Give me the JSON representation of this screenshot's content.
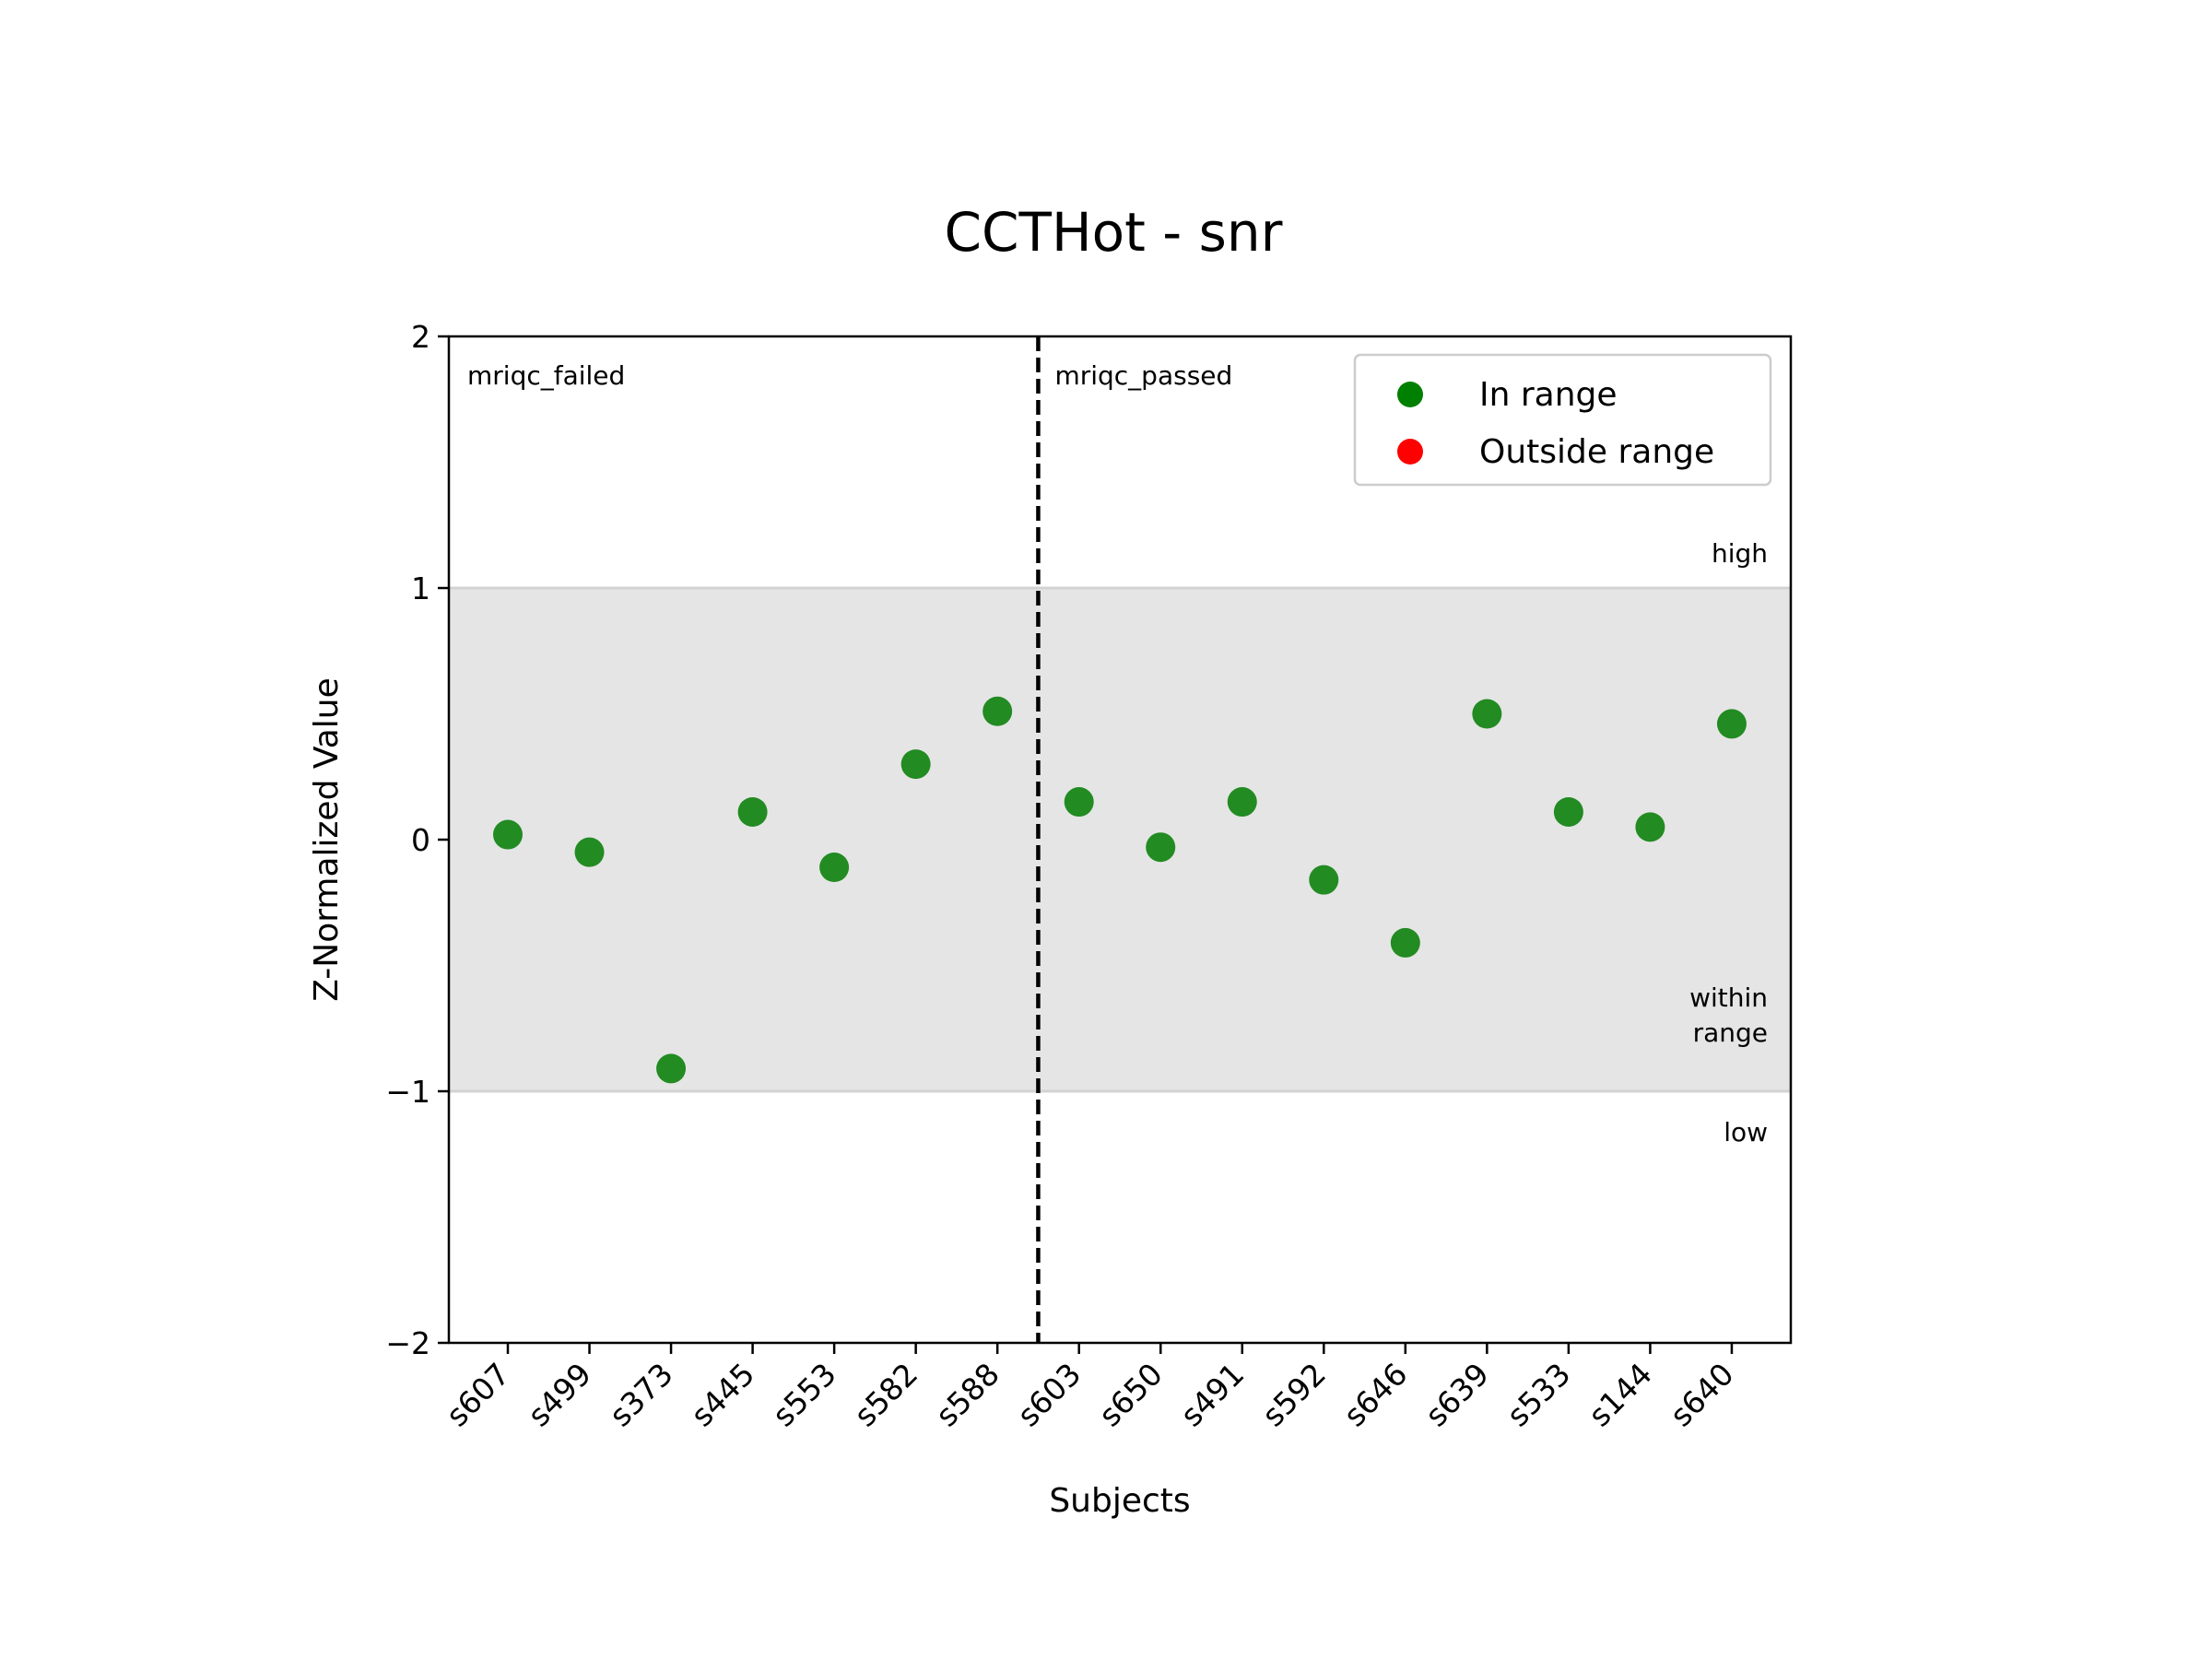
{
  "chart_data": {
    "type": "scatter",
    "title": "CCTHot - snr",
    "xlabel": "Subjects",
    "ylabel": "Z-Normalized Value",
    "ylim": [
      -2,
      2
    ],
    "yticks": [
      -2,
      -1,
      0,
      1,
      2
    ],
    "ytick_labels": [
      "−2",
      "−1",
      "0",
      "1",
      "2"
    ],
    "categories": [
      "s607",
      "s499",
      "s373",
      "s445",
      "s553",
      "s582",
      "s588",
      "s603",
      "s650",
      "s491",
      "s592",
      "s646",
      "s639",
      "s533",
      "s144",
      "s640"
    ],
    "series": [
      {
        "name": "In range",
        "color": "#228b22",
        "values": [
          0.02,
          -0.05,
          -0.91,
          0.11,
          -0.11,
          0.3,
          0.51,
          0.15,
          -0.03,
          0.15,
          -0.16,
          -0.41,
          0.5,
          0.11,
          0.05,
          0.46
        ]
      },
      {
        "name": "Outside range",
        "color": "#ff0000",
        "values": []
      }
    ],
    "shaded_band": {
      "from": -1,
      "to": 1,
      "color": "#e5e5e5"
    },
    "divider": {
      "between": [
        "s588",
        "s603"
      ],
      "style": "dashed"
    },
    "group_labels": {
      "left": "mriqc_failed",
      "right": "mriqc_passed"
    },
    "region_labels": {
      "high": "high",
      "within": [
        "within",
        "range"
      ],
      "low": "low"
    },
    "legend": {
      "position": "top-right",
      "entries": [
        {
          "label": "In range",
          "color": "#008000"
        },
        {
          "label": "Outside range",
          "color": "#ff0000"
        }
      ]
    },
    "grid": false
  }
}
